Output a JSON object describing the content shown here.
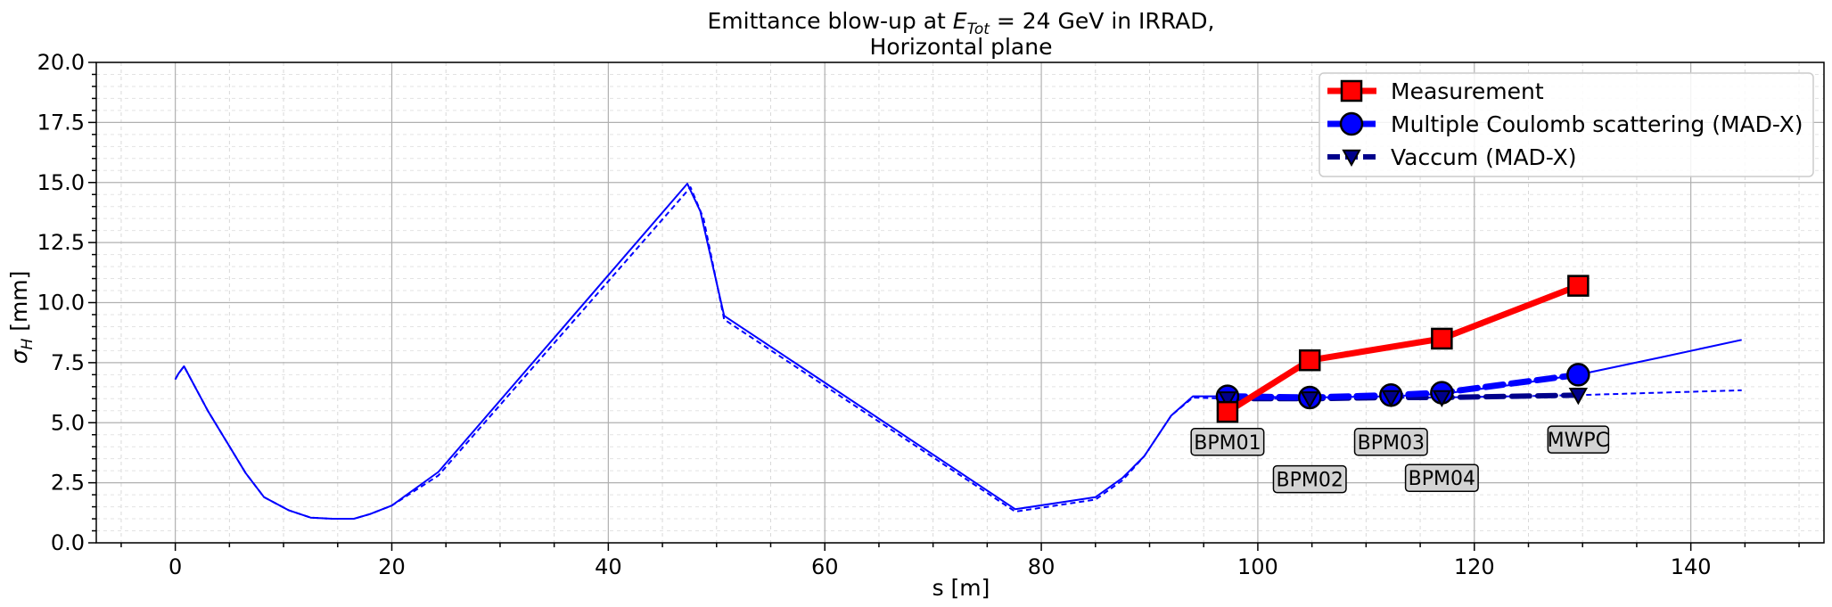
{
  "chart_data": {
    "type": "line",
    "title": {
      "prefix": "Emittance blow-up at ",
      "e_symbol": "E",
      "e_subscript": "Tot",
      "suffix": " = 24 GeV in IRRAD,",
      "line2": "Horizontal plane"
    },
    "xlabel": "s [m]",
    "ylabel": {
      "symbol": "σ",
      "subscript": "H",
      "unit": " [mm]"
    },
    "xlim": [
      -7.3,
      152.3
    ],
    "ylim": [
      0,
      20
    ],
    "xticks": [
      0,
      20,
      40,
      60,
      80,
      100,
      120,
      140
    ],
    "yticks": [
      0.0,
      2.5,
      5.0,
      7.5,
      10.0,
      12.5,
      15.0,
      17.5,
      20.0
    ],
    "ytick_labels": [
      "0.0",
      "2.5",
      "5.0",
      "7.5",
      "10.0",
      "12.5",
      "15.0",
      "17.5",
      "20.0"
    ],
    "grid": true,
    "minor_grid": true,
    "legend_position": "top-right",
    "colors": {
      "measurement": "#ff0000",
      "mcs": "#0000ff",
      "vacuum": "#00008b",
      "profile": "#0000ff"
    },
    "series": [
      {
        "name": "Measurement",
        "style": "solid",
        "marker": "square",
        "points": [
          [
            97.2,
            5.45
          ],
          [
            104.8,
            7.6
          ],
          [
            117.0,
            8.5
          ],
          [
            129.6,
            10.7
          ]
        ]
      },
      {
        "name": "Multiple Coulomb scattering (MAD-X)",
        "style": "dashed",
        "marker": "circle",
        "points": [
          [
            97.2,
            6.1
          ],
          [
            104.8,
            6.05
          ],
          [
            112.3,
            6.15
          ],
          [
            117.0,
            6.25
          ],
          [
            129.6,
            7.0
          ]
        ]
      },
      {
        "name": "Vaccum (MAD-X)",
        "style": "dashed",
        "marker": "triangle-down",
        "points": [
          [
            97.2,
            6.0
          ],
          [
            104.8,
            6.0
          ],
          [
            112.3,
            6.05
          ],
          [
            117.0,
            6.05
          ],
          [
            129.6,
            6.15
          ]
        ]
      }
    ],
    "profiles": [
      {
        "style": "solid",
        "points": [
          [
            0,
            6.8
          ],
          [
            0.3,
            7.05
          ],
          [
            0.8,
            7.35
          ],
          [
            3.0,
            5.5
          ],
          [
            6.5,
            2.9
          ],
          [
            8.2,
            1.9
          ],
          [
            10.5,
            1.35
          ],
          [
            12.5,
            1.05
          ],
          [
            14.5,
            1.0
          ],
          [
            16.5,
            1.0
          ],
          [
            18.0,
            1.2
          ],
          [
            20.0,
            1.55
          ],
          [
            24.3,
            2.95
          ],
          [
            47.3,
            14.95
          ],
          [
            48.5,
            13.8
          ],
          [
            50.7,
            9.45
          ],
          [
            77.6,
            1.4
          ],
          [
            85.0,
            1.9
          ],
          [
            87.5,
            2.7
          ],
          [
            89.5,
            3.6
          ],
          [
            92.0,
            5.3
          ],
          [
            94.0,
            6.1
          ],
          [
            97.2,
            6.1
          ],
          [
            104.8,
            6.05
          ],
          [
            112.3,
            6.1
          ],
          [
            117.0,
            6.2
          ],
          [
            123.0,
            6.55
          ],
          [
            129.6,
            7.0
          ],
          [
            137.0,
            7.7
          ],
          [
            144.7,
            8.45
          ]
        ]
      },
      {
        "style": "dashed",
        "points": [
          [
            0,
            6.8
          ],
          [
            0.3,
            7.05
          ],
          [
            0.8,
            7.35
          ],
          [
            3.0,
            5.5
          ],
          [
            6.5,
            2.9
          ],
          [
            8.2,
            1.9
          ],
          [
            10.5,
            1.35
          ],
          [
            12.5,
            1.05
          ],
          [
            14.5,
            1.0
          ],
          [
            16.5,
            1.0
          ],
          [
            18.0,
            1.2
          ],
          [
            20.0,
            1.55
          ],
          [
            24.3,
            2.8
          ],
          [
            47.6,
            14.8
          ],
          [
            48.8,
            13.5
          ],
          [
            50.7,
            9.3
          ],
          [
            77.6,
            1.3
          ],
          [
            85.0,
            1.8
          ],
          [
            87.5,
            2.6
          ],
          [
            89.5,
            3.6
          ],
          [
            92.0,
            5.3
          ],
          [
            94.0,
            6.05
          ],
          [
            97.2,
            6.0
          ],
          [
            104.8,
            6.0
          ],
          [
            112.3,
            6.05
          ],
          [
            117.0,
            6.05
          ],
          [
            129.6,
            6.15
          ],
          [
            137.0,
            6.25
          ],
          [
            144.7,
            6.35
          ]
        ]
      }
    ],
    "annotations": [
      {
        "text": "BPM01",
        "x": 97.2,
        "y": 4.2
      },
      {
        "text": "BPM02",
        "x": 104.8,
        "y": 2.65
      },
      {
        "text": "BPM03",
        "x": 112.3,
        "y": 4.2
      },
      {
        "text": "BPM04",
        "x": 117.0,
        "y": 2.7
      },
      {
        "text": "MWPC",
        "x": 129.6,
        "y": 4.3
      }
    ]
  }
}
